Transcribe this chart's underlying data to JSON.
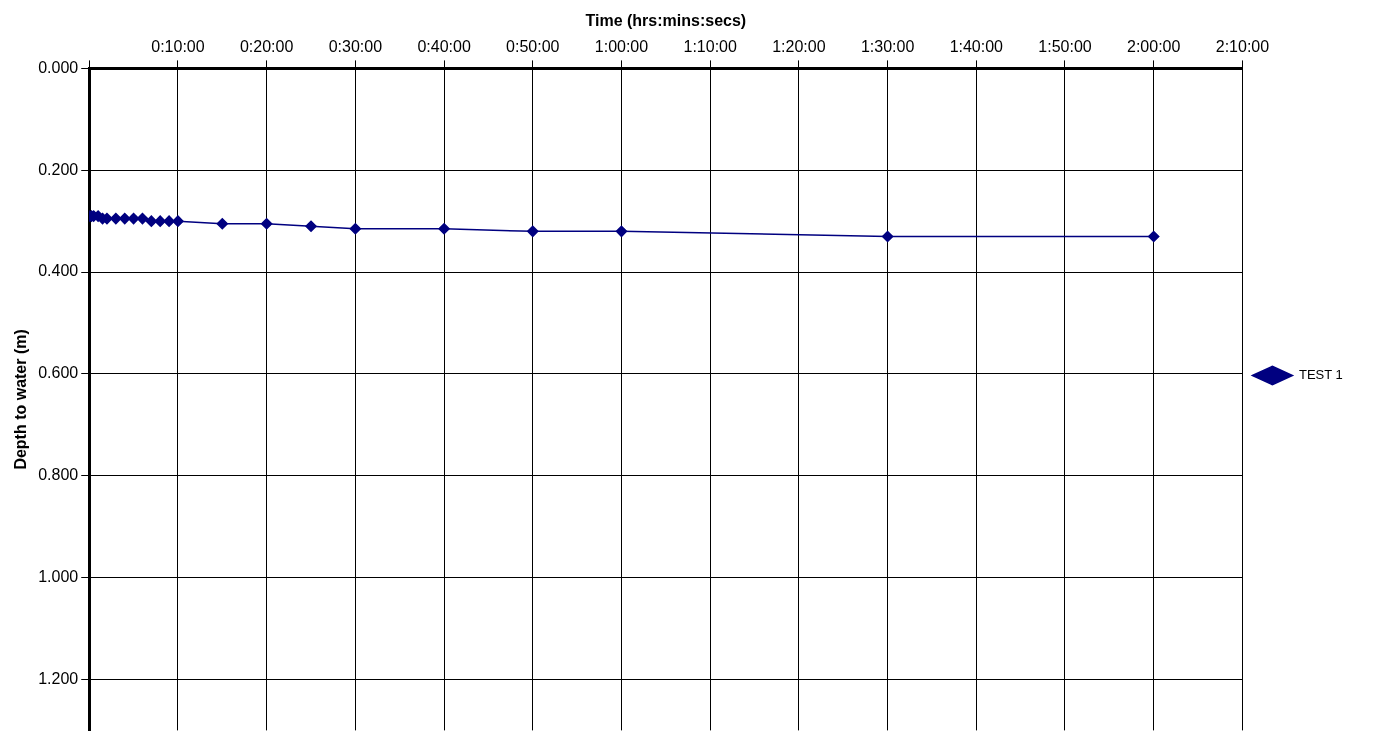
{
  "chart_data": {
    "type": "line",
    "xlabel": "Time (hrs:mins:secs)",
    "ylabel": "Depth to water (m)",
    "xlim": [
      0,
      2.1667
    ],
    "xticks": [
      {
        "value": 0,
        "label": null
      },
      {
        "value": 0.1667,
        "label": "0:10:00"
      },
      {
        "value": 0.3333,
        "label": "0:20:00"
      },
      {
        "value": 0.5,
        "label": "0:30:00"
      },
      {
        "value": 0.6667,
        "label": "0:40:00"
      },
      {
        "value": 0.8333,
        "label": "0:50:00"
      },
      {
        "value": 1,
        "label": "1:00:00"
      },
      {
        "value": 1.1667,
        "label": "1:10:00"
      },
      {
        "value": 1.3333,
        "label": "1:20:00"
      },
      {
        "value": 1.5,
        "label": "1:30:00"
      },
      {
        "value": 1.6667,
        "label": "1:40:00"
      },
      {
        "value": 1.8333,
        "label": "1:50:00"
      },
      {
        "value": 2,
        "label": "2:00:00"
      },
      {
        "value": 2.1667,
        "label": "2:10:00"
      }
    ],
    "ylim": [
      1.3,
      0
    ],
    "yticks": [
      {
        "value": 0,
        "label": "0.000"
      },
      {
        "value": 0.2,
        "label": "0.200"
      },
      {
        "value": 0.4,
        "label": "0.400"
      },
      {
        "value": 0.6,
        "label": "0.600"
      },
      {
        "value": 0.8,
        "label": "0.800"
      },
      {
        "value": 1,
        "label": "1.000"
      },
      {
        "value": 1.2,
        "label": "1.200"
      }
    ],
    "grid": true,
    "legend": "right",
    "marker": "diamond",
    "line_style": "solid",
    "series": [
      {
        "name": "TEST 1",
        "color": "#000080",
        "x": [
          0,
          0.0042,
          0.0083,
          0.0167,
          0.025,
          0.0333,
          0.05,
          0.0667,
          0.0833,
          0.1,
          0.1167,
          0.1333,
          0.15,
          0.1667,
          0.25,
          0.3333,
          0.4167,
          0.5,
          0.6667,
          0.8333,
          1,
          1.5,
          2
        ],
        "values": [
          0.29,
          0.29,
          0.29,
          0.29,
          0.295,
          0.295,
          0.295,
          0.295,
          0.295,
          0.295,
          0.3,
          0.3,
          0.3,
          0.3,
          0.305,
          0.305,
          0.31,
          0.315,
          0.315,
          0.32,
          0.32,
          0.33,
          0.33
        ]
      }
    ]
  }
}
